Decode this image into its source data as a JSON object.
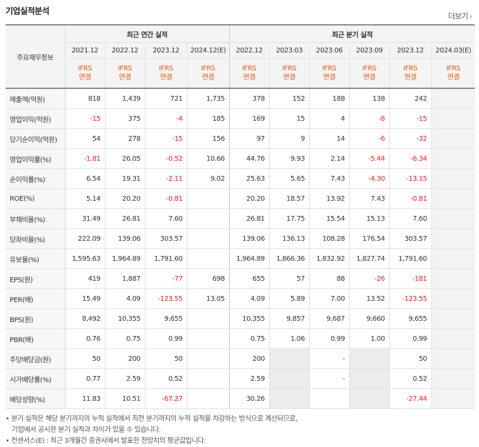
{
  "title": "기업실적분석",
  "more_label": "더보기",
  "more_icon": "chevron-right-icon",
  "table": {
    "corner_label": "주요재무정보",
    "groups": [
      {
        "label": "최근 연간 실적"
      },
      {
        "label": "최근 분기 실적"
      }
    ],
    "periods": [
      "2021.12",
      "2022.12",
      "2023.12",
      "2024.12(E)",
      "2022.12",
      "2023.03",
      "2023.06",
      "2023.09",
      "2023.12",
      "2024.03(E)"
    ],
    "basis_top": "IFRS",
    "basis_bottom": "연결",
    "rows": [
      {
        "label": "매출액(억원)",
        "values": [
          "818",
          "1,439",
          "721",
          "1,735",
          "378",
          "152",
          "188",
          "138",
          "242",
          ""
        ]
      },
      {
        "label": "영업이익(억원)",
        "values": [
          "-15",
          "375",
          "-4",
          "185",
          "169",
          "15",
          "4",
          "-8",
          "-15",
          ""
        ]
      },
      {
        "label": "당기순이익(억원)",
        "values": [
          "54",
          "278",
          "-15",
          "156",
          "97",
          "9",
          "14",
          "-6",
          "-32",
          ""
        ]
      },
      {
        "label": "영업이익률(%)",
        "values": [
          "-1.81",
          "26.05",
          "-0.52",
          "10.66",
          "44.76",
          "9.93",
          "2.14",
          "-5.44",
          "-6.34",
          ""
        ]
      },
      {
        "label": "순이익률(%)",
        "values": [
          "6.54",
          "19.31",
          "-2.11",
          "9.02",
          "25.63",
          "5.65",
          "7.43",
          "-4.30",
          "-13.15",
          ""
        ]
      },
      {
        "label": "ROE(%)",
        "values": [
          "5.14",
          "20.20",
          "-0.81",
          "",
          "20.20",
          "18.57",
          "13.92",
          "7.43",
          "-0.81",
          ""
        ]
      },
      {
        "label": "부채비율(%)",
        "values": [
          "31.49",
          "26.81",
          "7.60",
          "",
          "26.81",
          "17.75",
          "15.54",
          "15.13",
          "7.60",
          ""
        ]
      },
      {
        "label": "당좌비율(%)",
        "values": [
          "222.09",
          "139.06",
          "303.57",
          "",
          "139.06",
          "136.13",
          "108.28",
          "176.54",
          "303.57",
          ""
        ]
      },
      {
        "label": "유보율(%)",
        "values": [
          "1,595.63",
          "1,964.89",
          "1,791.60",
          "",
          "1,964.89",
          "1,866.36",
          "1,832.92",
          "1,827.74",
          "1,791.60",
          ""
        ]
      },
      {
        "label": "EPS(원)",
        "values": [
          "419",
          "1,887",
          "-77",
          "698",
          "655",
          "57",
          "88",
          "-26",
          "-181",
          ""
        ]
      },
      {
        "label": "PER(배)",
        "values": [
          "15.49",
          "4.09",
          "-123.55",
          "13.05",
          "4.09",
          "5.89",
          "7.00",
          "13.52",
          "-123.55",
          ""
        ]
      },
      {
        "label": "BPS(원)",
        "values": [
          "8,492",
          "10,355",
          "9,655",
          "",
          "10,355",
          "9,857",
          "9,687",
          "9,660",
          "9,655",
          ""
        ]
      },
      {
        "label": "PBR(배)",
        "values": [
          "0.76",
          "0.75",
          "0.99",
          "",
          "0.75",
          "1.06",
          "0.99",
          "1.00",
          "0.99",
          ""
        ]
      },
      {
        "label": "주당배당금(원)",
        "values": [
          "50",
          "200",
          "50",
          "",
          "200",
          "",
          "-",
          "",
          "50",
          ""
        ]
      },
      {
        "label": "시가배당률(%)",
        "values": [
          "0.77",
          "2.59",
          "0.52",
          "",
          "2.59",
          "",
          "-",
          "",
          "0.52",
          ""
        ]
      },
      {
        "label": "배당성향(%)",
        "values": [
          "11.83",
          "10.51",
          "-67.27",
          "",
          "30.26",
          "",
          "",
          "",
          "-27.44",
          ""
        ]
      }
    ]
  },
  "notes": [
    "분기 실적은 해당 분기까지의 누적 실적에서 직전 분기까지의 누적 실적을 차감하는 방식으로 계산되므로,",
    "기업에서 공시한 분기 실적과 차이가 있을 수 있습니다.",
    "컨센서스(E) : 최근 3개월간 증권사에서 발표한 전망치의 평균값입니다."
  ],
  "colors": {
    "accent": "#e05a1a",
    "negative": "#e02020",
    "header_bg": "#f4f4f4",
    "estimate_bg": "#f1f4f0"
  }
}
